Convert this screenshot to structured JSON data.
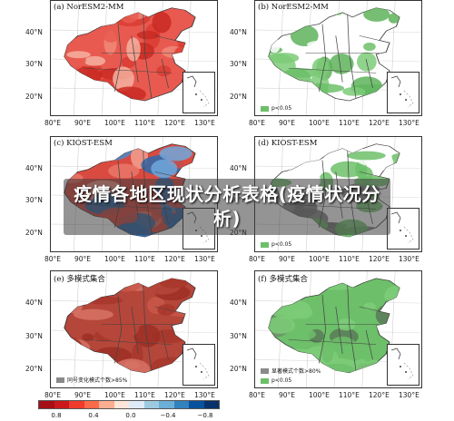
{
  "panels": [
    {
      "id": "a",
      "label": "(a) NorESM2-MM",
      "type": "diverging",
      "legend": ""
    },
    {
      "id": "b",
      "label": "(b) NorESM2-MM",
      "type": "significance",
      "legend": "p<0.05"
    },
    {
      "id": "c",
      "label": "(c) KIOST-ESM",
      "type": "diverging-cool",
      "legend": ""
    },
    {
      "id": "d",
      "label": "(d) KIOST-ESM",
      "type": "significance-gray",
      "legend": "p<0.05"
    },
    {
      "id": "e",
      "label": "(e) 多模式集合",
      "type": "ensemble",
      "legend": "同号变化模式个数>85%"
    },
    {
      "id": "f",
      "label": "(f) 多模式集合",
      "type": "ensemble-sig",
      "legend": "显著模式个数>80%",
      "legend2": "p<0.05"
    }
  ],
  "lat_labels": [
    "40°N",
    "30°N",
    "20°N"
  ],
  "lon_labels": [
    "80°E",
    "90°E",
    "100°E",
    "110°E",
    "120°E",
    "130°E"
  ],
  "colorbar": {
    "labels": [
      "0.8",
      "0.4",
      "0.0",
      "−0.4",
      "−0.8"
    ],
    "colors": [
      "#a50f15",
      "#cb181d",
      "#ef3b2c",
      "#fb6a4a",
      "#fcae91",
      "#fee5d9",
      "#deebf7",
      "#9ecae1",
      "#6baed6",
      "#3182bd",
      "#08519c",
      "#08306b"
    ]
  },
  "overlay_title": "疫情各地区现状分析表格(疫情状况分析)",
  "colors": {
    "green": "#6dbf6a",
    "red": "#e0685f",
    "gray": "#8a8a8a"
  }
}
